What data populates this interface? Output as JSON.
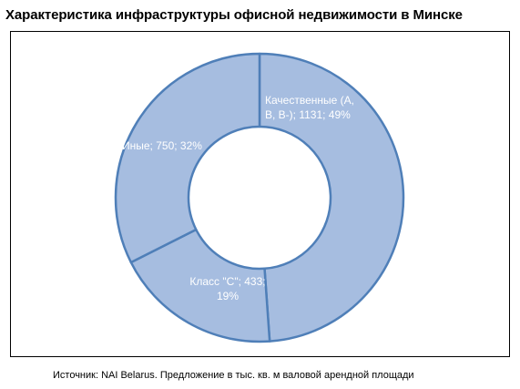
{
  "title": "Характеристика инфраструктуры офисной недвижимости в Минске",
  "source": "Источник: NAI Belarus. Предложение в тыс. кв. м валовой арендной площади",
  "colors": {
    "fill": "#a6bde0",
    "stroke": "#4f7fb8",
    "label": "#ffffff"
  },
  "chart_data": {
    "type": "pie",
    "style": "doughnut",
    "categories": [
      "Качественные (А, В, В-)",
      "Класс \"С\"",
      "Иные"
    ],
    "values": [
      1131,
      433,
      750
    ],
    "percent": [
      49,
      19,
      32
    ],
    "labels": [
      [
        "Качественные (А,",
        "В, В-); 1131; 49%"
      ],
      [
        "Класс \"С\"; 433;",
        "19%"
      ],
      [
        "Иные; 750; 32%"
      ]
    ],
    "legend": "none"
  }
}
